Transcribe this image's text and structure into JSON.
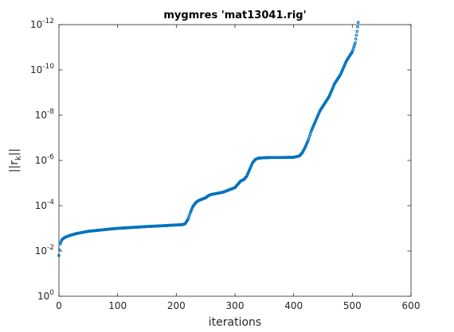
{
  "chart_data": {
    "type": "scatter",
    "title": "mygmres 'mat13041.rig'",
    "xlabel": "iterations",
    "ylabel": "||r_k||",
    "ylabel_main": "||r",
    "ylabel_sub": "k",
    "ylabel_end": "||",
    "xlim": [
      0,
      600
    ],
    "ylim_exp": [
      -12,
      0
    ],
    "yscale": "log",
    "grid": false,
    "marker_color": "#0072BD",
    "x_ticks": [
      0,
      100,
      200,
      300,
      400,
      500,
      600
    ],
    "x_tick_labels": [
      "0",
      "100",
      "200",
      "300",
      "400",
      "500",
      "600"
    ],
    "y_tick_exps": [
      0,
      -2,
      -4,
      -6,
      -8,
      -10,
      -12
    ],
    "y_tick_labels": [
      "0",
      "-2",
      "-4",
      "-6",
      "-8",
      "-10",
      "-12"
    ],
    "y_tick_base": "10",
    "series": [
      {
        "x": [
          0,
          2,
          5,
          10,
          20,
          30,
          50,
          80,
          100,
          150,
          180,
          200,
          210,
          215,
          220,
          224,
          228,
          232,
          236,
          240,
          245,
          250,
          255,
          260,
          265,
          270,
          280,
          290,
          300,
          305,
          310,
          315,
          320,
          325,
          330,
          335,
          340,
          350,
          360,
          380,
          400,
          410,
          415,
          420,
          425,
          430,
          435,
          440,
          445,
          450,
          455,
          460,
          465,
          470,
          475,
          480,
          485,
          490,
          495,
          500,
          505,
          508,
          510
        ],
        "log10_y": [
          -1.8,
          -2.3,
          -2.5,
          -2.6,
          -2.7,
          -2.77,
          -2.87,
          -2.95,
          -3.0,
          -3.08,
          -3.12,
          -3.15,
          -3.16,
          -3.2,
          -3.4,
          -3.7,
          -3.95,
          -4.1,
          -4.2,
          -4.25,
          -4.3,
          -4.35,
          -4.45,
          -4.5,
          -4.52,
          -4.55,
          -4.6,
          -4.7,
          -4.8,
          -4.95,
          -5.1,
          -5.15,
          -5.3,
          -5.6,
          -5.9,
          -6.05,
          -6.1,
          -6.12,
          -6.13,
          -6.13,
          -6.14,
          -6.2,
          -6.35,
          -6.6,
          -6.9,
          -7.3,
          -7.6,
          -7.9,
          -8.2,
          -8.4,
          -8.6,
          -8.8,
          -9.1,
          -9.4,
          -9.6,
          -9.8,
          -10.1,
          -10.4,
          -10.6,
          -10.8,
          -11.2,
          -11.7,
          -12.1
        ]
      }
    ]
  }
}
